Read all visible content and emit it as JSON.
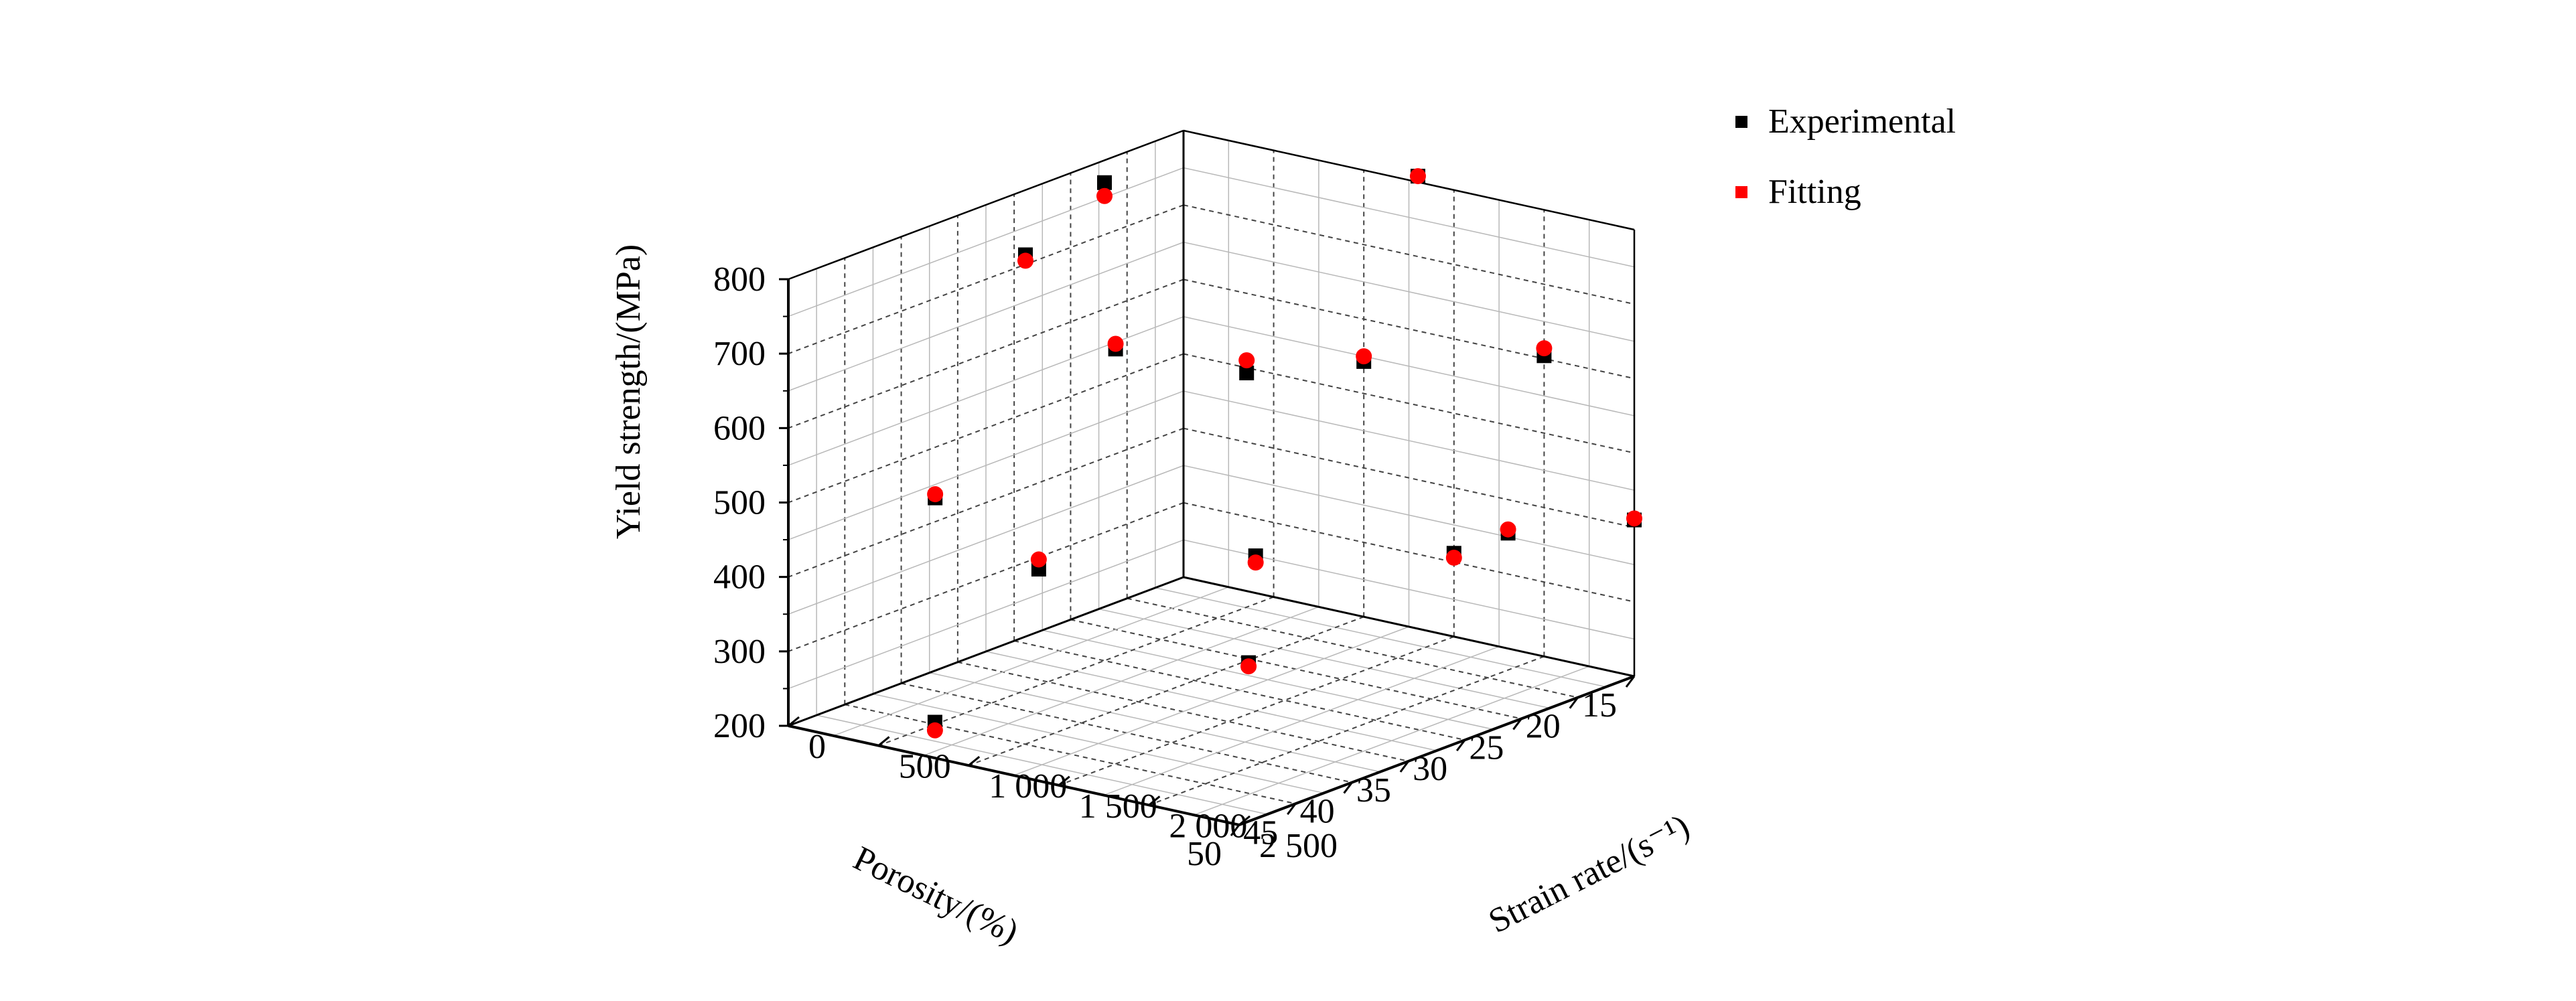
{
  "chart_data": {
    "type": "scatter",
    "projection": "3d",
    "xlabel": "Porosity/(%)",
    "ylabel": "Strain rate/(s⁻¹)",
    "zlabel": "Yield strength/(MPa)",
    "xlim": [
      15,
      50
    ],
    "ylim": [
      0,
      2500
    ],
    "zlim": [
      200,
      800
    ],
    "x_ticks": [
      "15",
      "20",
      "25",
      "30",
      "35",
      "40",
      "45",
      "50"
    ],
    "y_ticks": [
      "0",
      "500",
      "1 000",
      "1 500",
      "2 000",
      "2 500"
    ],
    "z_ticks": [
      "200",
      "300",
      "400",
      "500",
      "600",
      "700",
      "800"
    ],
    "grid": true,
    "legend_position": "top-right",
    "series": [
      {
        "name": "Experimental",
        "marker": "square",
        "color": "#000000",
        "points": [
          {
            "x": 15,
            "y": 1300,
            "z": 808
          },
          {
            "x": 15,
            "y": 2000,
            "z": 604
          },
          {
            "x": 15,
            "y": 1000,
            "z": 543
          },
          {
            "x": 15,
            "y": 2500,
            "z": 410
          },
          {
            "x": 15,
            "y": 1800,
            "z": 355
          },
          {
            "x": 15,
            "y": 1500,
            "z": 312
          },
          {
            "x": 15,
            "y": 350,
            "z": 493
          },
          {
            "x": 22,
            "y": 0,
            "z": 770
          },
          {
            "x": 29,
            "y": 0,
            "z": 713
          },
          {
            "x": 29,
            "y": 500,
            "z": 613
          },
          {
            "x": 37,
            "y": 0,
            "z": 432
          },
          {
            "x": 39,
            "y": 700,
            "z": 385
          },
          {
            "x": 15,
            "y": 400,
            "z": 250
          },
          {
            "x": 30,
            "y": 1300,
            "z": 240
          },
          {
            "x": 45,
            "y": 500,
            "z": 203
          }
        ]
      },
      {
        "name": "Fitting",
        "marker": "circle",
        "color": "#ff0000",
        "points": [
          {
            "x": 15,
            "y": 1300,
            "z": 808
          },
          {
            "x": 15,
            "y": 2000,
            "z": 614
          },
          {
            "x": 15,
            "y": 1000,
            "z": 550
          },
          {
            "x": 15,
            "y": 2500,
            "z": 412
          },
          {
            "x": 15,
            "y": 1800,
            "z": 360
          },
          {
            "x": 15,
            "y": 1500,
            "z": 306
          },
          {
            "x": 15,
            "y": 350,
            "z": 510
          },
          {
            "x": 22,
            "y": 0,
            "z": 752
          },
          {
            "x": 29,
            "y": 0,
            "z": 705
          },
          {
            "x": 29,
            "y": 500,
            "z": 620
          },
          {
            "x": 37,
            "y": 0,
            "z": 437
          },
          {
            "x": 39,
            "y": 700,
            "z": 398
          },
          {
            "x": 15,
            "y": 400,
            "z": 241
          },
          {
            "x": 30,
            "y": 1300,
            "z": 235
          },
          {
            "x": 45,
            "y": 500,
            "z": 192
          }
        ]
      }
    ]
  }
}
